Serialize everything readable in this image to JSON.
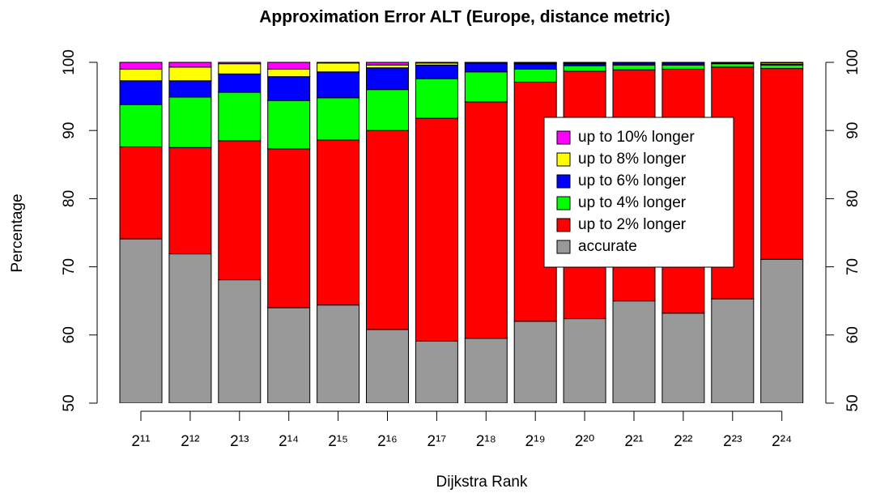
{
  "chart_data": {
    "type": "stacked_bar",
    "title": "Approximation Error ALT (Europe, distance metric)",
    "x_label": "Dijkstra Rank",
    "y_label": "Percentage",
    "categories": [
      "2¹¹",
      "2¹²",
      "2¹³",
      "2¹⁴",
      "2¹⁵",
      "2¹⁶",
      "2¹⁷",
      "2¹⁸",
      "2¹⁹",
      "2²⁰",
      "2²¹",
      "2²²",
      "2²³",
      "2²⁴"
    ],
    "series": [
      {
        "name": "accurate",
        "color": "#999999",
        "values": [
          74.1,
          71.9,
          68.1,
          64.0,
          64.4,
          60.8,
          59.1,
          59.5,
          62.0,
          62.4,
          65.0,
          63.2,
          65.3,
          71.1
        ]
      },
      {
        "name": "up to 2% longer",
        "color": "#ff0000",
        "values": [
          13.5,
          15.6,
          20.4,
          23.3,
          24.2,
          29.2,
          32.7,
          34.7,
          35.1,
          36.3,
          33.9,
          35.8,
          34.0,
          28.0
        ]
      },
      {
        "name": "up to 4% longer",
        "color": "#00ff00",
        "values": [
          6.2,
          7.4,
          7.1,
          7.1,
          6.2,
          6.0,
          5.8,
          4.4,
          1.9,
          0.8,
          0.7,
          0.6,
          0.5,
          0.5
        ]
      },
      {
        "name": "up to 6% longer",
        "color": "#0000ff",
        "values": [
          3.5,
          2.4,
          2.7,
          3.5,
          3.8,
          3.2,
          2.0,
          1.3,
          0.8,
          0.3,
          0.3,
          0.3,
          0.1,
          0.1
        ]
      },
      {
        "name": "up to 8% longer",
        "color": "#ffff00",
        "values": [
          1.7,
          2.0,
          1.5,
          1.1,
          1.3,
          0.4,
          0.3,
          0.1,
          0.1,
          0.1,
          0.1,
          0.1,
          0.1,
          0.2
        ]
      },
      {
        "name": "up to 10% longer",
        "color": "#ff00ff",
        "values": [
          1.0,
          0.7,
          0.2,
          1.0,
          0.1,
          0.4,
          0.1,
          0,
          0.1,
          0.1,
          0,
          0,
          0,
          0.1
        ]
      }
    ],
    "ylim": [
      50,
      100
    ],
    "yticks": [
      50,
      60,
      70,
      80,
      90,
      100
    ],
    "y2ticks": [
      50,
      60,
      70,
      80,
      90,
      100
    ],
    "legend": "right"
  }
}
